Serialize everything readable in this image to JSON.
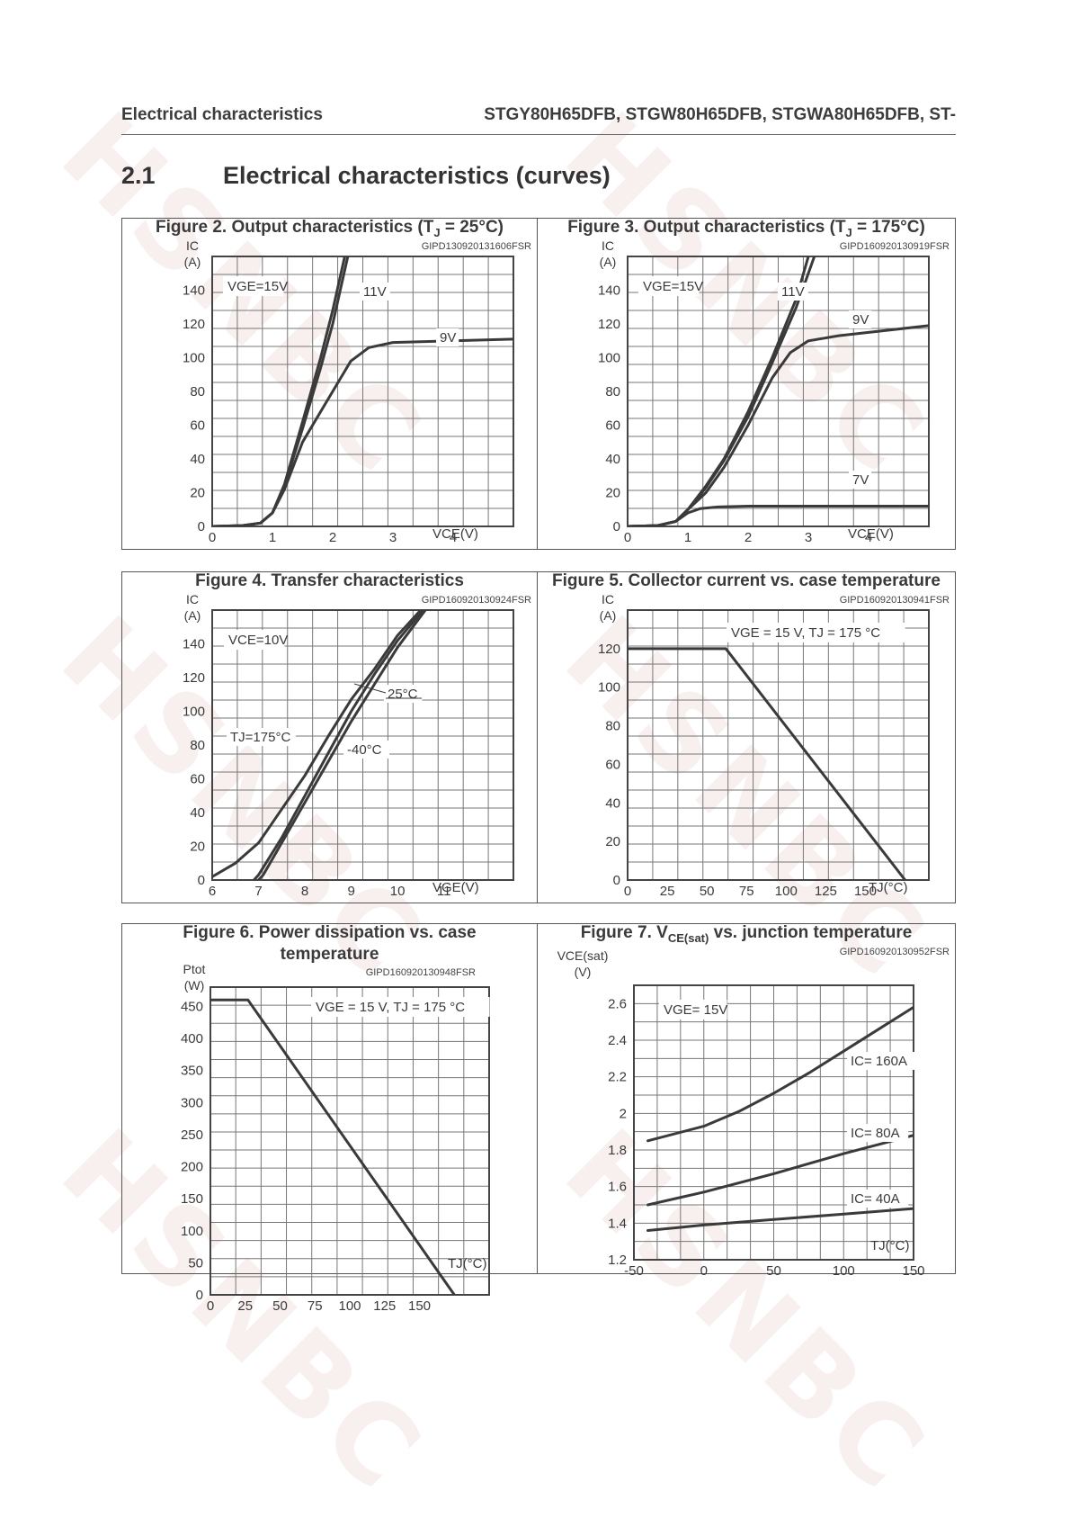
{
  "header": {
    "left": "Electrical characteristics",
    "right": "STGY80H65DFB, STGW80H65DFB, STGWA80H65DFB, ST-"
  },
  "section": {
    "number": "2.1",
    "title": "Electrical characteristics (curves)"
  },
  "watermark": "HSNBC",
  "figures": [
    {
      "id": "fig2",
      "title_parts": [
        "Figure 2. Output characteristics (T",
        "J",
        " = 25°C)"
      ],
      "code": "GIPD130920131606FSR"
    },
    {
      "id": "fig3",
      "title_parts": [
        "Figure 3. Output characteristics (T",
        "J",
        " = 175°C)"
      ],
      "code": "GIPD160920130919FSR"
    },
    {
      "id": "fig4",
      "title_parts": [
        "Figure 4. Transfer characteristics",
        "",
        ""
      ],
      "code": "GIPD160920130924FSR"
    },
    {
      "id": "fig5",
      "title_parts": [
        "Figure 5. Collector current vs. case temperature",
        "",
        ""
      ],
      "code": "GIPD160920130941FSR"
    },
    {
      "id": "fig6",
      "title_parts": [
        "Figure 6. Power dissipation vs. case",
        "",
        ""
      ],
      "title_line2": "temperature",
      "code": "GIPD160920130948FSR"
    },
    {
      "id": "fig7",
      "title_parts": [
        "Figure 7. V",
        "CE(sat)",
        " vs. junction temperature"
      ],
      "code": "GIPD160920130952FSR"
    }
  ],
  "chart_data": [
    {
      "id": "fig2",
      "type": "line",
      "title": "Figure 2. Output characteristics (TJ = 25°C)",
      "ylabel": "IC (A)",
      "xlabel": "VCE(V)",
      "xlim": [
        0,
        5
      ],
      "ylim": [
        0,
        160
      ],
      "xticks": [
        0,
        1,
        2,
        3,
        4
      ],
      "yticks": [
        0,
        20,
        40,
        60,
        80,
        100,
        120,
        140
      ],
      "annotations": [
        "VGE=15V",
        "11V",
        "9V"
      ],
      "series": [
        {
          "name": "VGE=15V",
          "x": [
            0,
            0.5,
            0.8,
            1.0,
            1.2,
            1.5,
            1.8,
            2.0,
            2.2
          ],
          "y": [
            0,
            0.5,
            2,
            8,
            25,
            62,
            100,
            128,
            160
          ]
        },
        {
          "name": "11V",
          "x": [
            0,
            0.5,
            0.8,
            1.0,
            1.2,
            1.5,
            1.8,
            2.0,
            2.25
          ],
          "y": [
            0,
            0.5,
            2,
            8,
            24,
            58,
            94,
            120,
            160
          ]
        },
        {
          "name": "9V",
          "x": [
            0,
            0.5,
            0.8,
            1.0,
            1.2,
            1.5,
            1.8,
            2.0,
            2.3,
            2.6,
            3.0,
            4.0,
            5.0
          ],
          "y": [
            0,
            0.5,
            2,
            8,
            22,
            50,
            68,
            80,
            98,
            106,
            109,
            110,
            111
          ]
        }
      ]
    },
    {
      "id": "fig3",
      "type": "line",
      "title": "Figure 3. Output characteristics (TJ = 175°C)",
      "ylabel": "IC (A)",
      "xlabel": "VCE(V)",
      "xlim": [
        0,
        5
      ],
      "ylim": [
        0,
        160
      ],
      "xticks": [
        0,
        1,
        2,
        3,
        4
      ],
      "yticks": [
        0,
        20,
        40,
        60,
        80,
        100,
        120,
        140
      ],
      "annotations": [
        "VGE=15V",
        "11V",
        "9V",
        "7V"
      ],
      "series": [
        {
          "name": "VGE=15V",
          "x": [
            0,
            0.5,
            0.8,
            1.0,
            1.3,
            1.6,
            2.0,
            2.4,
            2.8,
            3.0
          ],
          "y": [
            0,
            0.5,
            3,
            10,
            24,
            40,
            68,
            100,
            135,
            160
          ]
        },
        {
          "name": "11V",
          "x": [
            0,
            0.5,
            0.8,
            1.0,
            1.3,
            1.6,
            2.0,
            2.4,
            2.8,
            3.1
          ],
          "y": [
            0,
            0.5,
            3,
            10,
            23,
            39,
            65,
            97,
            130,
            160
          ]
        },
        {
          "name": "9V",
          "x": [
            0,
            0.5,
            0.8,
            1.0,
            1.3,
            1.6,
            2.0,
            2.4,
            2.7,
            3.0,
            3.5,
            4.0,
            5.0
          ],
          "y": [
            0,
            0.5,
            3,
            10,
            20,
            35,
            60,
            88,
            103,
            110,
            113,
            115,
            119
          ]
        },
        {
          "name": "7V",
          "x": [
            0,
            0.5,
            0.8,
            1.0,
            1.2,
            1.5,
            2.0,
            3.0,
            4.0,
            5.0
          ],
          "y": [
            0,
            0.5,
            3,
            8,
            10.5,
            11.5,
            12,
            12,
            12,
            12
          ]
        }
      ]
    },
    {
      "id": "fig4",
      "type": "line",
      "title": "Figure 4. Transfer characteristics",
      "ylabel": "IC (A)",
      "xlabel": "VGE(V)",
      "xlim": [
        6,
        12.5
      ],
      "ylim": [
        0,
        160
      ],
      "xticks": [
        6,
        7,
        8,
        9,
        10,
        11
      ],
      "yticks": [
        0,
        20,
        40,
        60,
        80,
        100,
        120,
        140
      ],
      "annotations": [
        "VCE=10V",
        "TJ=175°C",
        "25°C",
        "-40°C"
      ],
      "series": [
        {
          "name": "TJ=175°C",
          "x": [
            6.0,
            6.5,
            7.0,
            7.5,
            8.0,
            8.5,
            9.0,
            9.5,
            10.0,
            10.5
          ],
          "y": [
            2,
            10,
            22,
            42,
            62,
            85,
            107,
            125,
            145,
            160
          ]
        },
        {
          "name": "25°C",
          "x": [
            6.9,
            7.0,
            7.5,
            8.0,
            8.5,
            9.0,
            9.5,
            10.0,
            10.55
          ],
          "y": [
            0,
            3,
            25,
            50,
            75,
            100,
            122,
            142,
            160
          ]
        },
        {
          "name": "-40°C",
          "x": [
            7.0,
            7.1,
            7.5,
            8.0,
            8.5,
            9.0,
            9.5,
            10.0,
            10.6
          ],
          "y": [
            0,
            3,
            22,
            46,
            70,
            94,
            116,
            138,
            160
          ]
        }
      ]
    },
    {
      "id": "fig5",
      "type": "line",
      "title": "Figure 5. Collector current vs. case temperature",
      "ylabel": "IC (A)",
      "xlabel": "TJ(°C)",
      "xlim": [
        0,
        190
      ],
      "ylim": [
        0,
        140
      ],
      "xticks": [
        0,
        25,
        50,
        75,
        100,
        125,
        150
      ],
      "yticks": [
        0,
        20,
        40,
        60,
        80,
        100,
        120
      ],
      "annotations": [
        "VGE = 15 V, TJ = 175 °C"
      ],
      "series": [
        {
          "name": "",
          "x": [
            0,
            62,
            175
          ],
          "y": [
            120,
            120,
            0
          ]
        }
      ]
    },
    {
      "id": "fig6",
      "type": "line",
      "title": "Figure 6. Power dissipation vs. case temperature",
      "ylabel": "Ptot (W)",
      "xlabel": "TJ(°C)",
      "xlim": [
        0,
        200
      ],
      "ylim": [
        0,
        480
      ],
      "xticks": [
        0,
        25,
        50,
        75,
        100,
        125,
        150
      ],
      "yticks": [
        0,
        50,
        100,
        150,
        200,
        250,
        300,
        350,
        400,
        450
      ],
      "annotations": [
        "VGE = 15 V, TJ = 175 °C"
      ],
      "series": [
        {
          "name": "",
          "x": [
            0,
            27,
            175
          ],
          "y": [
            460,
            460,
            0
          ]
        }
      ]
    },
    {
      "id": "fig7",
      "type": "line",
      "title": "Figure 7. VCE(sat) vs. junction temperature",
      "ylabel": "VCE(sat) (V)",
      "xlabel": "TJ(°C)",
      "xlim": [
        -50,
        150
      ],
      "ylim": [
        1.2,
        2.7
      ],
      "xticks": [
        -50,
        0,
        50,
        100,
        150
      ],
      "yticks": [
        1.2,
        1.4,
        1.6,
        1.8,
        2,
        2.2,
        2.4,
        2.6
      ],
      "annotations": [
        "VGE= 15V",
        "IC= 160A",
        "IC= 80A",
        "IC= 40A"
      ],
      "series": [
        {
          "name": "IC= 160A",
          "x": [
            -40,
            0,
            25,
            50,
            75,
            100,
            125,
            150
          ],
          "y": [
            1.85,
            1.93,
            2.01,
            2.11,
            2.22,
            2.34,
            2.46,
            2.58
          ]
        },
        {
          "name": "IC= 80A",
          "x": [
            -40,
            0,
            50,
            100,
            150
          ],
          "y": [
            1.5,
            1.57,
            1.67,
            1.78,
            1.88
          ]
        },
        {
          "name": "IC= 40A",
          "x": [
            -40,
            0,
            50,
            100,
            150
          ],
          "y": [
            1.36,
            1.39,
            1.42,
            1.45,
            1.48
          ]
        }
      ]
    }
  ]
}
